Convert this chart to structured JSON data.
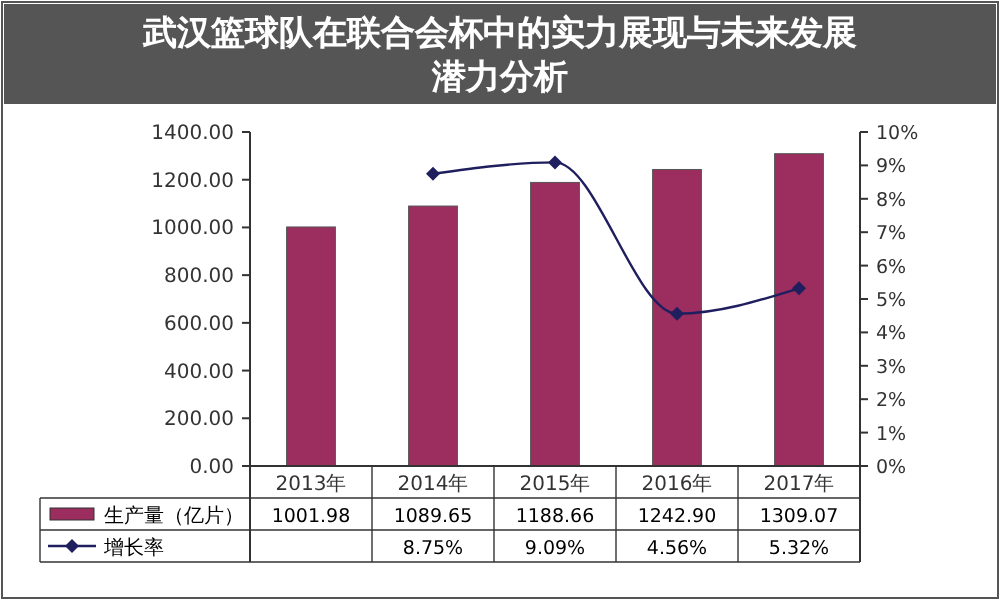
{
  "chart_data": {
    "type": "bar",
    "title": "武汉篮球队在联合会杯中的实力展现与未来发展潜力分析",
    "categories": [
      "2013年",
      "2014年",
      "2015年",
      "2016年",
      "2017年"
    ],
    "series": [
      {
        "name": "生产量（亿片）",
        "color": "#9b2d5f",
        "values": [
          1001.98,
          1089.65,
          1188.66,
          1242.9,
          1309.07
        ],
        "value_labels": [
          "1001.98",
          "1089.65",
          "1188.66",
          "1242.90",
          "1309.07"
        ]
      },
      {
        "name": "增长率",
        "type": "line",
        "axis": "y2",
        "color": "#1f1f5f",
        "marker": "diamond",
        "values": [
          null,
          8.75,
          9.09,
          4.56,
          5.32
        ],
        "value_labels": [
          null,
          "8.75%",
          "9.09%",
          "4.56%",
          "5.32%"
        ]
      }
    ],
    "ylim": [
      0,
      1400
    ],
    "yticks": [
      {
        "value": 0,
        "label": "0.00"
      },
      {
        "value": 200,
        "label": "200.00"
      },
      {
        "value": 400,
        "label": "400.00"
      },
      {
        "value": 600,
        "label": "600.00"
      },
      {
        "value": 800,
        "label": "800.00"
      },
      {
        "value": 1000,
        "label": "1000.00"
      },
      {
        "value": 1200,
        "label": "1200.00"
      },
      {
        "value": 1400,
        "label": "1400.00"
      }
    ],
    "y2lim": [
      0,
      10
    ],
    "y2ticks": [
      {
        "value": 0,
        "label": "0%"
      },
      {
        "value": 1,
        "label": "1%"
      },
      {
        "value": 2,
        "label": "2%"
      },
      {
        "value": 3,
        "label": "3%"
      },
      {
        "value": 4,
        "label": "4%"
      },
      {
        "value": 5,
        "label": "5%"
      },
      {
        "value": 6,
        "label": "6%"
      },
      {
        "value": 7,
        "label": "7%"
      },
      {
        "value": 8,
        "label": "8%"
      },
      {
        "value": 9,
        "label": "9%"
      },
      {
        "value": 10,
        "label": "10%"
      }
    ],
    "legend": "bottom left",
    "grid": false
  }
}
